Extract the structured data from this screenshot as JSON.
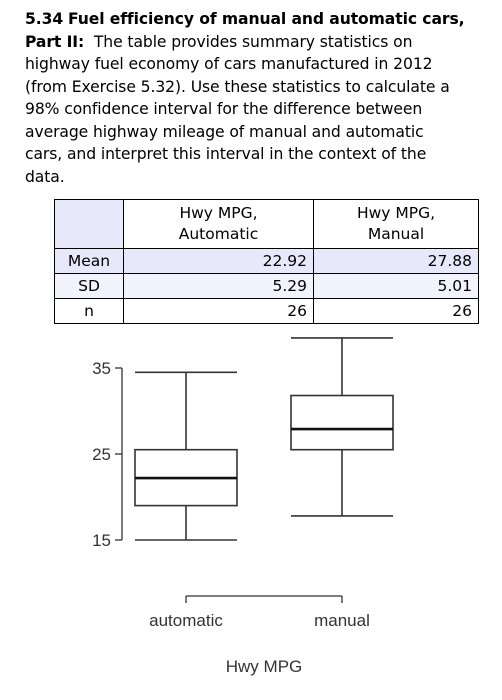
{
  "problem": {
    "number": "5.34",
    "title": "Fuel efficiency of manual and automatic cars,",
    "part": "Part II:",
    "line1": "The table provides summary statistics on",
    "line2": "highway fuel economy of cars manufactured in 2012",
    "line3": "(from Exercise 5.32). Use these statistics to calculate a",
    "line4": "98% confidence interval for the difference between",
    "line5": "average highway mileage of manual and automatic",
    "line6": "cars, and interpret this interval in the context of the",
    "line7": "data."
  },
  "table": {
    "headers": [
      "",
      "Hwy MPG,\nAutomatic",
      "Hwy MPG,\nManual"
    ],
    "header_line1": [
      "Hwy MPG,",
      "Hwy MPG,"
    ],
    "header_line2": [
      "Automatic",
      "Manual"
    ],
    "rows": [
      {
        "label": "Mean",
        "automatic": "22.92",
        "manual": "27.88"
      },
      {
        "label": "SD",
        "automatic": "5.29",
        "manual": "5.01"
      },
      {
        "label": "n",
        "automatic": "26",
        "manual": "26"
      }
    ]
  },
  "chart_data": {
    "type": "boxplot",
    "title": "",
    "xlabel": "Hwy MPG",
    "ylabel": "",
    "categories": [
      "automatic",
      "manual"
    ],
    "y_ticks": [
      15,
      25,
      35
    ],
    "ylim": [
      15,
      35
    ],
    "boxes": [
      {
        "name": "automatic",
        "min": 15,
        "q1": 19,
        "median": 22.2,
        "q3": 25.5,
        "max": 34.5
      },
      {
        "name": "manual",
        "min": 17.8,
        "q1": 25.5,
        "median": 27.9,
        "q3": 31.8,
        "max": 38.5
      }
    ]
  }
}
